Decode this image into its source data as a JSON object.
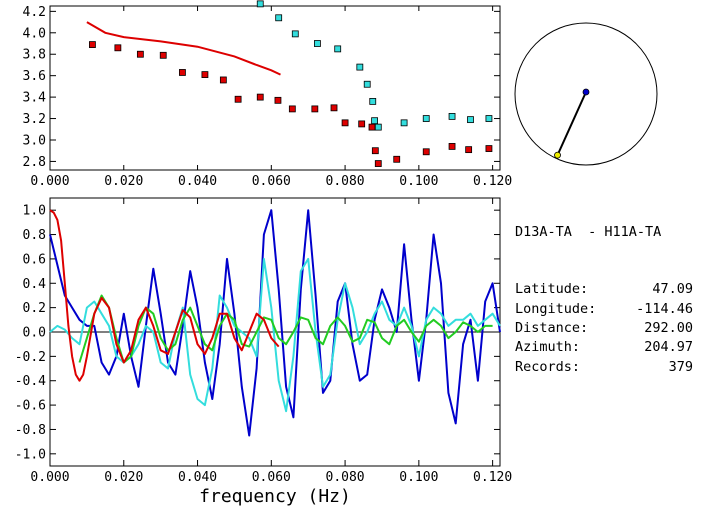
{
  "station_pair": {
    "title": "D13A-TA  - H11A-TA",
    "fields": [
      {
        "label": "Latitude:",
        "value": "47.09"
      },
      {
        "label": "Longitude:",
        "value": "-114.46"
      },
      {
        "label": "Distance:",
        "value": "292.00"
      },
      {
        "label": "Azimuth:",
        "value": "204.97"
      },
      {
        "label": "Records:",
        "value": "379"
      }
    ]
  },
  "colors": {
    "red": "#dd0000",
    "cyan": "#33dddd",
    "blue": "#0000cc",
    "green": "#22cc22",
    "yellow": "#eeee00"
  },
  "chart_data": [
    {
      "type": "scatter",
      "id": "dispersion",
      "xlim": [
        0.0,
        0.122
      ],
      "ylim": [
        2.72,
        4.25
      ],
      "xticks": [
        "0.000",
        "0.020",
        "0.040",
        "0.060",
        "0.080",
        "0.100",
        "0.120"
      ],
      "yticks": [
        "2.8",
        "3.0",
        "3.2",
        "3.4",
        "3.6",
        "3.8",
        "4.0",
        "4.2"
      ],
      "series": [
        {
          "color": "red",
          "kind": "points",
          "x": [
            0.0115,
            0.0184,
            0.0245,
            0.0307,
            0.0359,
            0.042,
            0.047,
            0.051,
            0.057,
            0.0618,
            0.0657,
            0.0718,
            0.077,
            0.08,
            0.0845,
            0.0873,
            0.0882,
            0.089,
            0.094,
            0.102,
            0.109,
            0.1135,
            0.119
          ],
          "y": [
            3.89,
            3.86,
            3.8,
            3.79,
            3.63,
            3.61,
            3.56,
            3.38,
            3.4,
            3.37,
            3.29,
            3.29,
            3.3,
            3.16,
            3.15,
            3.12,
            2.9,
            2.78,
            2.82,
            2.89,
            2.94,
            2.91,
            2.92
          ]
        },
        {
          "color": "cyan",
          "kind": "points",
          "x": [
            0.057,
            0.062,
            0.0665,
            0.0725,
            0.078,
            0.084,
            0.086,
            0.0875,
            0.088,
            0.089,
            0.096,
            0.102,
            0.109,
            0.114,
            0.119
          ],
          "y": [
            4.27,
            4.14,
            3.99,
            3.9,
            3.85,
            3.68,
            3.52,
            3.36,
            3.18,
            3.12,
            3.16,
            3.2,
            3.22,
            3.19,
            3.2
          ]
        },
        {
          "color": "red",
          "kind": "line",
          "x": [
            0.01,
            0.015,
            0.02,
            0.03,
            0.04,
            0.05,
            0.056,
            0.06,
            0.0625
          ],
          "y": [
            4.1,
            4.0,
            3.96,
            3.92,
            3.87,
            3.78,
            3.7,
            3.65,
            3.61
          ]
        }
      ]
    },
    {
      "type": "line",
      "id": "coherency",
      "xlim": [
        0.0,
        0.122
      ],
      "ylim": [
        -1.1,
        1.1
      ],
      "xticks": [
        "0.000",
        "0.020",
        "0.040",
        "0.060",
        "0.080",
        "0.100",
        "0.120"
      ],
      "yticks": [
        "1.0",
        "0.8",
        "0.6",
        "0.4",
        "0.2",
        "0.0",
        "-0.2",
        "-0.4",
        "-0.6",
        "-0.8",
        "-1.0"
      ],
      "xlabel": "frequency (Hz)",
      "series": [
        {
          "color": "blue",
          "x": [
            0.0,
            0.002,
            0.004,
            0.006,
            0.008,
            0.01,
            0.012,
            0.014,
            0.016,
            0.018,
            0.02,
            0.022,
            0.024,
            0.026,
            0.028,
            0.03,
            0.032,
            0.034,
            0.036,
            0.038,
            0.04,
            0.042,
            0.044,
            0.046,
            0.048,
            0.05,
            0.052,
            0.054,
            0.056,
            0.058,
            0.06,
            0.062,
            0.064,
            0.066,
            0.068,
            0.07,
            0.072,
            0.074,
            0.076,
            0.078,
            0.08,
            0.082,
            0.084,
            0.086,
            0.088,
            0.09,
            0.092,
            0.094,
            0.096,
            0.098,
            0.1,
            0.102,
            0.104,
            0.106,
            0.108,
            0.11,
            0.112,
            0.114,
            0.116,
            0.118,
            0.12,
            0.122
          ],
          "y": [
            0.8,
            0.55,
            0.3,
            0.2,
            0.1,
            0.05,
            0.05,
            -0.25,
            -0.35,
            -0.2,
            0.15,
            -0.2,
            -0.45,
            0.05,
            0.52,
            0.15,
            -0.25,
            -0.35,
            0.05,
            0.5,
            0.2,
            -0.25,
            -0.55,
            -0.1,
            0.6,
            0.15,
            -0.45,
            -0.85,
            -0.3,
            0.8,
            1.0,
            0.35,
            -0.45,
            -0.7,
            0.35,
            1.0,
            0.3,
            -0.5,
            -0.4,
            0.25,
            0.4,
            -0.1,
            -0.4,
            -0.35,
            0.1,
            0.35,
            0.2,
            0.0,
            0.72,
            0.1,
            -0.4,
            0.1,
            0.8,
            0.4,
            -0.5,
            -0.75,
            -0.1,
            0.1,
            -0.4,
            0.25,
            0.4,
            0.0
          ]
        },
        {
          "color": "cyan",
          "x": [
            0.0,
            0.002,
            0.004,
            0.006,
            0.008,
            0.01,
            0.012,
            0.014,
            0.016,
            0.018,
            0.02,
            0.022,
            0.024,
            0.026,
            0.028,
            0.03,
            0.032,
            0.034,
            0.036,
            0.038,
            0.04,
            0.042,
            0.044,
            0.046,
            0.048,
            0.05,
            0.052,
            0.054,
            0.056,
            0.058,
            0.06,
            0.062,
            0.064,
            0.066,
            0.068,
            0.07,
            0.072,
            0.074,
            0.076,
            0.078,
            0.08,
            0.082,
            0.084,
            0.086,
            0.088,
            0.09,
            0.092,
            0.094,
            0.096,
            0.098,
            0.1,
            0.102,
            0.104,
            0.106,
            0.108,
            0.11,
            0.112,
            0.114,
            0.116,
            0.118,
            0.12,
            0.122
          ],
          "y": [
            0.0,
            0.05,
            0.02,
            -0.05,
            -0.1,
            0.2,
            0.25,
            0.15,
            0.05,
            -0.2,
            -0.25,
            -0.2,
            -0.1,
            0.05,
            0.0,
            -0.25,
            -0.3,
            0.0,
            0.2,
            -0.35,
            -0.55,
            -0.6,
            -0.3,
            0.3,
            0.2,
            0.05,
            0.0,
            -0.05,
            -0.2,
            0.6,
            0.2,
            -0.4,
            -0.65,
            -0.2,
            0.5,
            0.6,
            0.0,
            -0.45,
            -0.35,
            0.1,
            0.4,
            0.2,
            -0.1,
            0.0,
            0.15,
            0.25,
            0.1,
            0.05,
            0.2,
            0.05,
            -0.2,
            0.1,
            0.2,
            0.15,
            0.05,
            0.1,
            0.1,
            0.15,
            0.05,
            0.1,
            0.15,
            0.05
          ]
        },
        {
          "color": "green",
          "x": [
            0.008,
            0.01,
            0.012,
            0.014,
            0.016,
            0.018,
            0.02,
            0.022,
            0.024,
            0.026,
            0.028,
            0.03,
            0.032,
            0.034,
            0.036,
            0.038,
            0.04,
            0.042,
            0.044,
            0.046,
            0.048,
            0.05,
            0.052,
            0.054,
            0.056,
            0.058,
            0.06,
            0.062,
            0.064,
            0.066,
            0.068,
            0.07,
            0.072,
            0.074,
            0.076,
            0.078,
            0.08,
            0.082,
            0.084,
            0.086,
            0.088,
            0.09,
            0.092,
            0.094,
            0.096,
            0.098,
            0.1,
            0.102,
            0.104,
            0.106,
            0.108,
            0.11,
            0.112,
            0.114,
            0.116,
            0.118,
            0.12
          ],
          "y": [
            -0.25,
            -0.05,
            0.15,
            0.3,
            0.2,
            -0.05,
            -0.25,
            -0.2,
            0.05,
            0.2,
            0.15,
            -0.05,
            -0.15,
            -0.1,
            0.1,
            0.2,
            0.05,
            -0.1,
            -0.15,
            0.05,
            0.15,
            0.1,
            -0.1,
            -0.12,
            0.0,
            0.12,
            0.1,
            -0.05,
            -0.1,
            0.0,
            0.12,
            0.1,
            -0.05,
            -0.1,
            0.05,
            0.12,
            0.05,
            -0.08,
            -0.05,
            0.1,
            0.08,
            -0.05,
            -0.1,
            0.05,
            0.1,
            0.0,
            -0.08,
            0.05,
            0.1,
            0.05,
            -0.05,
            0.0,
            0.08,
            0.05,
            0.0,
            0.05,
            0.05
          ]
        },
        {
          "color": "red",
          "x": [
            0.0,
            0.001,
            0.002,
            0.003,
            0.004,
            0.005,
            0.006,
            0.007,
            0.008,
            0.009,
            0.01,
            0.012,
            0.014,
            0.016,
            0.018,
            0.02,
            0.022,
            0.024,
            0.026,
            0.028,
            0.03,
            0.032,
            0.034,
            0.036,
            0.038,
            0.04,
            0.042,
            0.044,
            0.046,
            0.048,
            0.05,
            0.052,
            0.054,
            0.056,
            0.058,
            0.06,
            0.062
          ],
          "y": [
            1.0,
            0.98,
            0.92,
            0.75,
            0.4,
            0.05,
            -0.2,
            -0.35,
            -0.4,
            -0.35,
            -0.2,
            0.15,
            0.28,
            0.2,
            -0.1,
            -0.25,
            -0.15,
            0.1,
            0.2,
            0.05,
            -0.15,
            -0.18,
            0.0,
            0.18,
            0.12,
            -0.1,
            -0.18,
            -0.05,
            0.15,
            0.15,
            -0.05,
            -0.15,
            0.0,
            0.15,
            0.1,
            -0.05,
            -0.12
          ]
        }
      ]
    }
  ],
  "map_inset": {
    "center_dot_color": "blue",
    "end_dot_color": "yellow",
    "azimuth_deg": 204.97
  }
}
